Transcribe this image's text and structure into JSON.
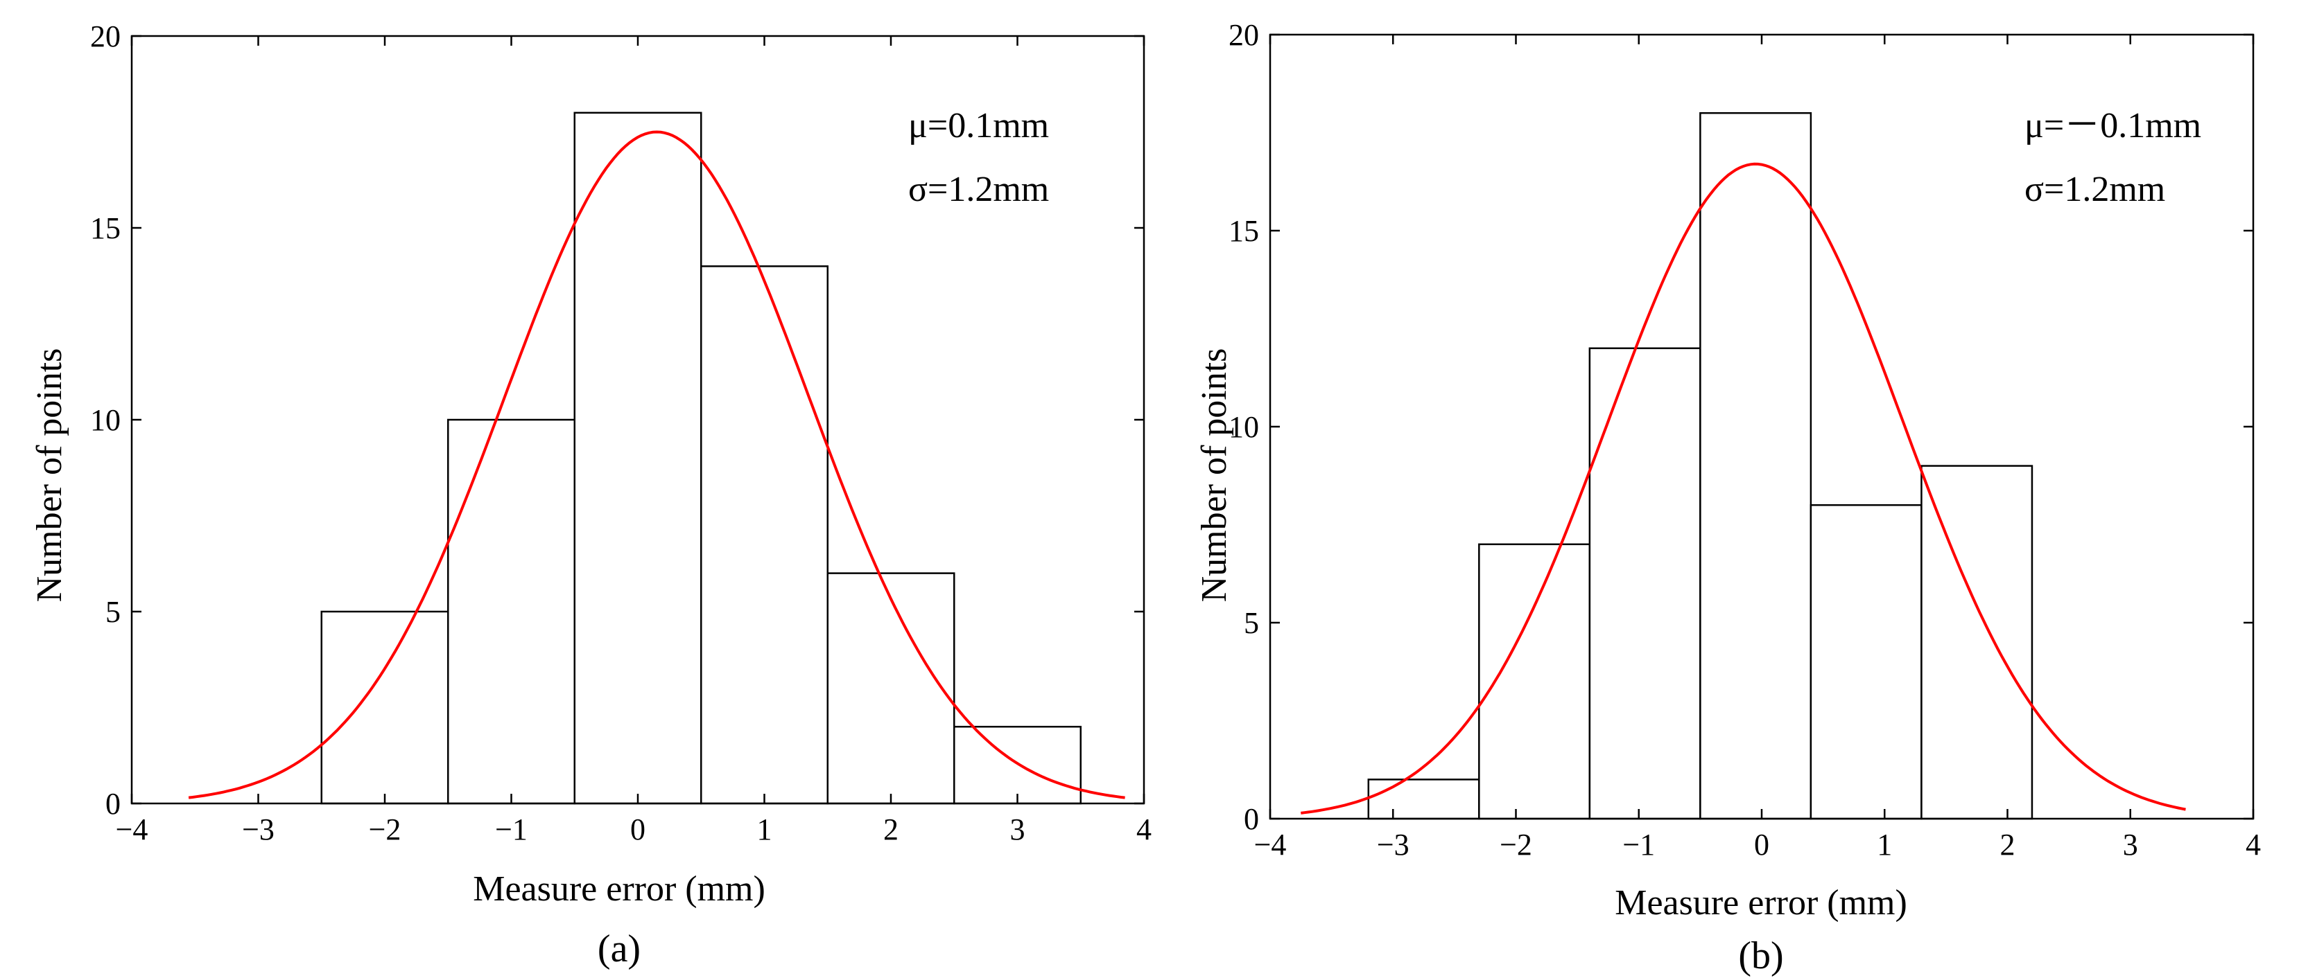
{
  "chart_data": [
    {
      "type": "bar",
      "panel_label": "(a)",
      "bin_edges": [
        -2.5,
        -1.5,
        -0.5,
        0.5,
        1.5,
        2.5,
        3.5
      ],
      "values": [
        5,
        10,
        18,
        14,
        6,
        2
      ],
      "fit_curve": {
        "type": "normal",
        "mu": 0.15,
        "sigma": 1.2,
        "peak": 17.5,
        "x_range": [
          -3.55,
          3.85
        ],
        "color": "#ff0000"
      },
      "annotations": [
        "μ=0.1mm",
        "σ=1.2mm"
      ],
      "xlabel": "Measure error (mm)",
      "ylabel": "Number of points",
      "xlim": [
        -4,
        4
      ],
      "ylim": [
        0,
        20
      ],
      "xticks": [
        -4,
        -3,
        -2,
        -1,
        0,
        1,
        2,
        3,
        4
      ],
      "xtick_labels": [
        "−4",
        "−3",
        "−2",
        "−1",
        "0",
        "1",
        "2",
        "3",
        "4"
      ],
      "yticks": [
        0,
        5,
        10,
        15,
        20
      ],
      "ytick_labels": [
        "0",
        "5",
        "10",
        "15",
        "20"
      ],
      "grid": false
    },
    {
      "type": "bar",
      "panel_label": "(b)",
      "bin_edges": [
        -3.2,
        -2.3,
        -1.4,
        -0.5,
        0.4,
        1.3,
        2.2
      ],
      "values": [
        1,
        7,
        12,
        18,
        8,
        9
      ],
      "fit_curve": {
        "type": "normal",
        "mu": -0.05,
        "sigma": 1.2,
        "peak": 16.7,
        "x_range": [
          -3.75,
          3.45
        ],
        "color": "#ff0000"
      },
      "annotations": [
        "μ=－0.1mm",
        "σ=1.2mm"
      ],
      "xlabel": "Measure error (mm)",
      "ylabel": "Number of points",
      "xlim": [
        -4,
        4
      ],
      "ylim": [
        0,
        20
      ],
      "xticks": [
        -4,
        -3,
        -2,
        -1,
        0,
        1,
        2,
        3,
        4
      ],
      "xtick_labels": [
        "−4",
        "−3",
        "−2",
        "−1",
        "0",
        "1",
        "2",
        "3",
        "4"
      ],
      "yticks": [
        0,
        5,
        10,
        15,
        20
      ],
      "ytick_labels": [
        "0",
        "5",
        "10",
        "15",
        "20"
      ],
      "grid": false
    }
  ]
}
